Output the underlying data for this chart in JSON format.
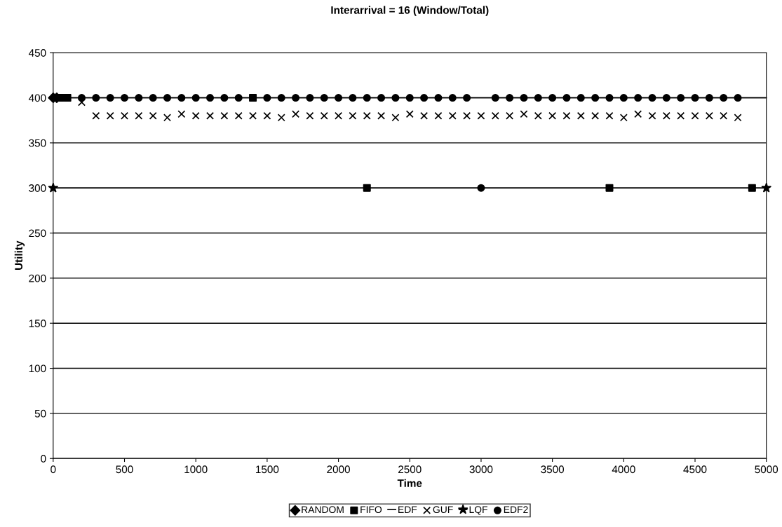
{
  "chart_data": {
    "type": "line",
    "title": "Interarrival = 16 (Window/Total)",
    "xlabel": "Time",
    "ylabel": "Utility",
    "xlim": [
      0,
      5000
    ],
    "xticks": [
      0,
      500,
      1000,
      1500,
      2000,
      2500,
      3000,
      3500,
      4000,
      4500,
      5000
    ],
    "ylim": [
      0,
      450
    ],
    "yticks": [
      0,
      50,
      100,
      150,
      200,
      250,
      300,
      350,
      400,
      450
    ],
    "grid": "y",
    "legend": "bottom",
    "line_style": "solid",
    "series": [
      {
        "name": "RANDOM",
        "color": "#000000",
        "marker": "diamond",
        "type": "scatter",
        "x": [
          0,
          25
        ],
        "values": [
          400,
          400
        ]
      },
      {
        "name": "FIFO",
        "color": "#000000",
        "marker": "square",
        "type": "scatter",
        "x": [
          50,
          100,
          1400,
          2200,
          3900,
          4900
        ],
        "values": [
          400,
          400,
          400,
          300,
          300,
          300
        ]
      },
      {
        "name": "EDF",
        "color": "#000000",
        "marker": "none",
        "x": [
          0,
          5000
        ],
        "values": [
          400,
          400
        ]
      },
      {
        "name": "GUF",
        "color": "#000000",
        "marker": "cross",
        "type": "scatter",
        "x": [
          200,
          300,
          400,
          500,
          600,
          700,
          800,
          900,
          1000,
          1100,
          1200,
          1300,
          1400,
          1500,
          1600,
          1700,
          1800,
          1900,
          2000,
          2100,
          2200,
          2300,
          2400,
          2500,
          2600,
          2700,
          2800,
          2900,
          3000,
          3100,
          3200,
          3300,
          3400,
          3500,
          3600,
          3700,
          3800,
          3900,
          4000,
          4100,
          4200,
          4300,
          4400,
          4500,
          4600,
          4700,
          4800
        ],
        "values": [
          395,
          380,
          380,
          380,
          380,
          380,
          378,
          382,
          380,
          380,
          380,
          380,
          380,
          380,
          378,
          382,
          380,
          380,
          380,
          380,
          380,
          380,
          378,
          382,
          380,
          380,
          380,
          380,
          380,
          380,
          380,
          382,
          380,
          380,
          380,
          380,
          380,
          380,
          378,
          382,
          380,
          380,
          380,
          380,
          380,
          380,
          378
        ]
      },
      {
        "name": "LQF",
        "color": "#000000",
        "marker": "star",
        "x": [
          0,
          5000
        ],
        "values": [
          300,
          300
        ]
      },
      {
        "name": "EDF2",
        "color": "#000000",
        "marker": "circle",
        "type": "scatter",
        "x": [
          200,
          300,
          400,
          500,
          600,
          700,
          800,
          900,
          1000,
          1100,
          1200,
          1300,
          1500,
          1600,
          1700,
          1800,
          1900,
          2000,
          2100,
          2200,
          2300,
          2400,
          2500,
          2600,
          2700,
          2800,
          2900,
          3000,
          3100,
          3200,
          3300,
          3400,
          3500,
          3600,
          3700,
          3800,
          3900,
          4000,
          4100,
          4200,
          4300,
          4400,
          4500,
          4600,
          4700,
          4800
        ],
        "values": [
          400,
          400,
          400,
          400,
          400,
          400,
          400,
          400,
          400,
          400,
          400,
          400,
          400,
          400,
          400,
          400,
          400,
          400,
          400,
          400,
          400,
          400,
          400,
          400,
          400,
          400,
          400,
          300,
          400,
          400,
          400,
          400,
          400,
          400,
          400,
          400,
          400,
          400,
          400,
          400,
          400,
          400,
          400,
          400,
          400,
          400
        ]
      }
    ]
  }
}
